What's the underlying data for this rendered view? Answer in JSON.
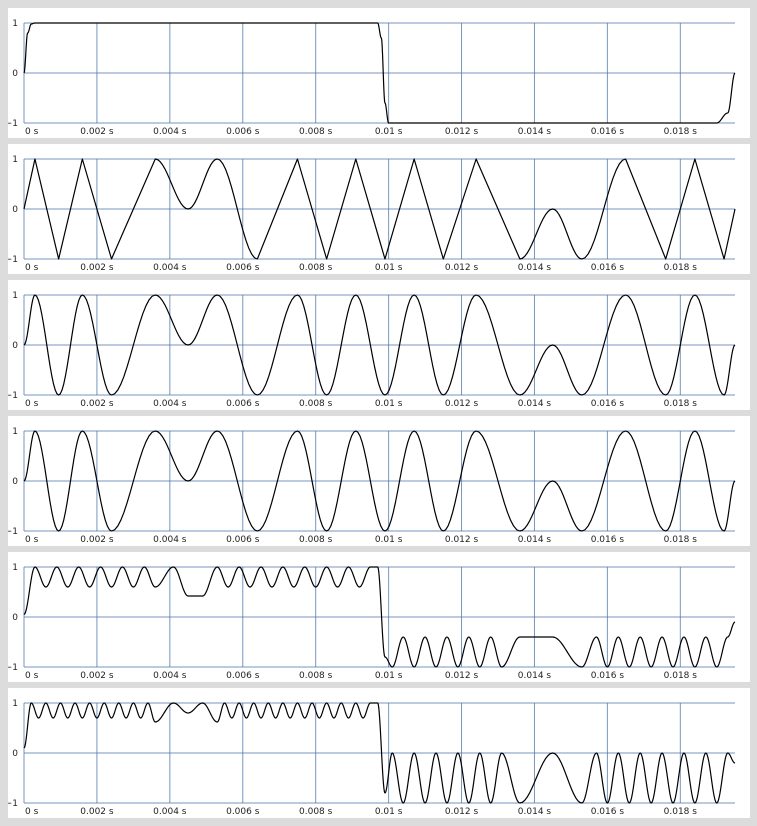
{
  "colors": {
    "background": "#dcdcdc",
    "panel": "#ffffff",
    "grid": "#4a74a8",
    "trace": "#000000",
    "text": "#222222"
  },
  "chart_data": [
    {
      "type": "line",
      "x_range": [
        0,
        0.0195
      ],
      "ylim": [
        -1,
        1
      ],
      "grid": true,
      "x_ticks": [
        0,
        0.002,
        0.004,
        0.006,
        0.008,
        0.01,
        0.012,
        0.014,
        0.016,
        0.018
      ],
      "x_tick_labels": [
        "0 s",
        "0.002 s",
        "0.004 s",
        "0.006 s",
        "0.008 s",
        "0.01 s",
        "0.012 s",
        "0.014 s",
        "0.016 s",
        "0.018 s"
      ],
      "y_ticks": [
        1,
        0,
        -1
      ],
      "y_tick_labels": [
        "1",
        "0",
        "−1"
      ],
      "x": [
        0,
        0.0001,
        0.0002,
        0.0003,
        0.0097,
        0.0098,
        0.0099,
        0.01,
        0.019,
        0.0193,
        0.0195
      ],
      "y": [
        0,
        0.8,
        0.98,
        1,
        1,
        0.7,
        -0.6,
        -1,
        -1,
        -0.8,
        0
      ]
    },
    {
      "type": "line",
      "x_range": [
        0,
        0.0195
      ],
      "ylim": [
        -1,
        1
      ],
      "grid": true,
      "x_ticks": [
        0,
        0.002,
        0.004,
        0.006,
        0.008,
        0.01,
        0.012,
        0.014,
        0.016,
        0.018
      ],
      "x_tick_labels": [
        "0 s",
        "0.002 s",
        "0.004 s",
        "0.006 s",
        "0.008 s",
        "0.01 s",
        "0.012 s",
        "0.014 s",
        "0.016 s",
        "0.018 s"
      ],
      "y_ticks": [
        1,
        0,
        -1
      ],
      "y_tick_labels": [
        "1",
        "0",
        "−1"
      ],
      "x": [
        0,
        0.0003,
        0.00095,
        0.0016,
        0.0024,
        0.0036,
        0.0045,
        0.0053,
        0.0064,
        0.0075,
        0.0083,
        0.0091,
        0.0099,
        0.0107,
        0.0115,
        0.0124,
        0.0136,
        0.0145,
        0.0153,
        0.0165,
        0.0176,
        0.0184,
        0.0192,
        0.0195
      ],
      "y": [
        0,
        1,
        -1,
        1,
        -1,
        1,
        0,
        1,
        -1,
        1,
        -1,
        1,
        -1,
        1,
        -1,
        1,
        -1,
        0,
        -1,
        1,
        -1,
        1,
        -1,
        0
      ],
      "curved_segments": [
        [
          0.0036,
          0.0064
        ],
        [
          0.0136,
          0.0165
        ]
      ]
    },
    {
      "type": "line",
      "x_range": [
        0,
        0.0195
      ],
      "ylim": [
        -1,
        1
      ],
      "grid": true,
      "x_ticks": [
        0,
        0.002,
        0.004,
        0.006,
        0.008,
        0.01,
        0.012,
        0.014,
        0.016,
        0.018
      ],
      "x_tick_labels": [
        "0 s",
        "0.002 s",
        "0.004 s",
        "0.006 s",
        "0.008 s",
        "0.01 s",
        "0.012 s",
        "0.014 s",
        "0.016 s",
        "0.018 s"
      ],
      "y_ticks": [
        1,
        0,
        -1
      ],
      "y_tick_labels": [
        "1",
        "0",
        "−1"
      ],
      "x": [
        0,
        0.0003,
        0.00095,
        0.0016,
        0.0024,
        0.0036,
        0.0045,
        0.0053,
        0.0064,
        0.0075,
        0.0083,
        0.0091,
        0.0099,
        0.0107,
        0.0115,
        0.0124,
        0.0136,
        0.0145,
        0.0153,
        0.0165,
        0.0176,
        0.0184,
        0.0192,
        0.0195
      ],
      "y": [
        0,
        1,
        -1,
        1,
        -1,
        1,
        0,
        1,
        -1,
        1,
        -1,
        1,
        -1,
        1,
        -1,
        1,
        -1,
        0,
        -1,
        1,
        -1,
        1,
        -1,
        0
      ]
    },
    {
      "type": "line",
      "x_range": [
        0,
        0.0195
      ],
      "ylim": [
        -1,
        1
      ],
      "grid": true,
      "x_ticks": [
        0,
        0.002,
        0.004,
        0.006,
        0.008,
        0.01,
        0.012,
        0.014,
        0.016,
        0.018
      ],
      "x_tick_labels": [
        "0 s",
        "0.002 s",
        "0.004 s",
        "0.006 s",
        "0.008 s",
        "0.01 s",
        "0.012 s",
        "0.014 s",
        "0.016 s",
        "0.018 s"
      ],
      "y_ticks": [
        1,
        0,
        -1
      ],
      "y_tick_labels": [
        "1",
        "0",
        "−1"
      ],
      "x": [
        0,
        0.0003,
        0.00095,
        0.0016,
        0.0024,
        0.0036,
        0.0045,
        0.0053,
        0.0064,
        0.0075,
        0.0083,
        0.0091,
        0.0099,
        0.0107,
        0.0115,
        0.0124,
        0.0136,
        0.0145,
        0.0153,
        0.0165,
        0.0176,
        0.0184,
        0.0192,
        0.0195
      ],
      "y": [
        0,
        1,
        -1,
        1,
        -1,
        1,
        0,
        1,
        -1,
        1,
        -1,
        1,
        -1,
        1,
        -1,
        1,
        -1,
        0,
        -1,
        1,
        -1,
        1,
        -1,
        0
      ]
    },
    {
      "type": "line",
      "x_range": [
        0,
        0.0195
      ],
      "ylim": [
        -1,
        1
      ],
      "grid": true,
      "x_ticks": [
        0,
        0.002,
        0.004,
        0.006,
        0.008,
        0.01,
        0.012,
        0.014,
        0.016,
        0.018
      ],
      "x_tick_labels": [
        "0 s",
        "0.002 s",
        "0.004 s",
        "0.006 s",
        "0.008 s",
        "0.01 s",
        "0.012 s",
        "0.014 s",
        "0.016 s",
        "0.018 s"
      ],
      "y_ticks": [
        1,
        0,
        -1
      ],
      "y_tick_labels": [
        "1",
        "0",
        "−1"
      ],
      "x": [
        0,
        0.0003,
        0.0006,
        0.0009,
        0.0012,
        0.0015,
        0.0018,
        0.0021,
        0.0024,
        0.0027,
        0.003,
        0.0033,
        0.0036,
        0.0041,
        0.0045,
        0.0049,
        0.0053,
        0.0056,
        0.0059,
        0.0062,
        0.0065,
        0.0068,
        0.0071,
        0.0074,
        0.0077,
        0.008,
        0.0083,
        0.0086,
        0.0089,
        0.0092,
        0.0095,
        0.0097,
        0.0099,
        0.0101,
        0.0104,
        0.0107,
        0.011,
        0.0113,
        0.0116,
        0.0119,
        0.0122,
        0.0125,
        0.0128,
        0.0131,
        0.0136,
        0.0145,
        0.0153,
        0.0157,
        0.016,
        0.0163,
        0.0166,
        0.0169,
        0.0172,
        0.0175,
        0.0178,
        0.0181,
        0.0184,
        0.0187,
        0.019,
        0.0193,
        0.0195
      ],
      "y": [
        0.05,
        1,
        0.6,
        1,
        0.6,
        1,
        0.6,
        1,
        0.6,
        1,
        0.6,
        1,
        0.6,
        1,
        0.42,
        0.42,
        1,
        0.6,
        1,
        0.6,
        1,
        0.6,
        1,
        0.6,
        1,
        0.6,
        1,
        0.6,
        1,
        0.6,
        1,
        1,
        -0.8,
        -1,
        -0.4,
        -1,
        -0.4,
        -1,
        -0.4,
        -1,
        -0.4,
        -1,
        -0.4,
        -1,
        -0.4,
        -0.4,
        -1,
        -0.4,
        -1,
        -0.4,
        -1,
        -0.4,
        -1,
        -0.4,
        -1,
        -0.4,
        -1,
        -0.4,
        -1,
        -0.4,
        -0.1
      ]
    },
    {
      "type": "line",
      "x_range": [
        0,
        0.0195
      ],
      "ylim": [
        -1,
        1
      ],
      "grid": true,
      "x_ticks": [
        0,
        0.002,
        0.004,
        0.006,
        0.008,
        0.01,
        0.012,
        0.014,
        0.016,
        0.018
      ],
      "x_tick_labels": [
        "0 s",
        "0.002 s",
        "0.004 s",
        "0.006 s",
        "0.008 s",
        "0.01 s",
        "0.012 s",
        "0.014 s",
        "0.016 s",
        "0.018 s"
      ],
      "y_ticks": [
        1,
        0,
        -1
      ],
      "y_tick_labels": [
        "1",
        "0",
        "−1"
      ],
      "x": [
        0,
        0.0002,
        0.0004,
        0.0006,
        0.0008,
        0.001,
        0.0012,
        0.0014,
        0.0016,
        0.0018,
        0.002,
        0.0022,
        0.0024,
        0.0026,
        0.0028,
        0.003,
        0.0032,
        0.0034,
        0.0036,
        0.0041,
        0.0045,
        0.0049,
        0.0053,
        0.0055,
        0.0057,
        0.0059,
        0.0061,
        0.0063,
        0.0065,
        0.0067,
        0.0069,
        0.0071,
        0.0073,
        0.0075,
        0.0077,
        0.0079,
        0.0081,
        0.0083,
        0.0085,
        0.0087,
        0.0089,
        0.0091,
        0.0093,
        0.0095,
        0.0097,
        0.0099,
        0.0101,
        0.0104,
        0.0107,
        0.011,
        0.0113,
        0.0116,
        0.0119,
        0.0122,
        0.0125,
        0.0128,
        0.0131,
        0.0136,
        0.0145,
        0.0153,
        0.0157,
        0.016,
        0.0163,
        0.0166,
        0.0169,
        0.0172,
        0.0175,
        0.0178,
        0.0181,
        0.0184,
        0.0187,
        0.019,
        0.0193,
        0.0195
      ],
      "y": [
        0.1,
        1,
        0.7,
        1,
        0.7,
        1,
        0.7,
        1,
        0.7,
        1,
        0.7,
        1,
        0.7,
        1,
        0.7,
        1,
        0.7,
        1,
        0.62,
        1,
        0.8,
        1,
        0.62,
        1,
        0.7,
        1,
        0.7,
        1,
        0.7,
        1,
        0.7,
        1,
        0.7,
        1,
        0.7,
        1,
        0.7,
        1,
        0.7,
        1,
        0.7,
        1,
        0.7,
        1,
        1,
        -0.8,
        0,
        -1,
        0,
        -1,
        0,
        -1,
        0,
        -1,
        0,
        -1,
        0,
        -1,
        0,
        -1,
        0,
        -1,
        0,
        -1,
        0,
        -1,
        0,
        -1,
        0,
        -1,
        0,
        -1,
        0,
        -0.2
      ]
    }
  ]
}
